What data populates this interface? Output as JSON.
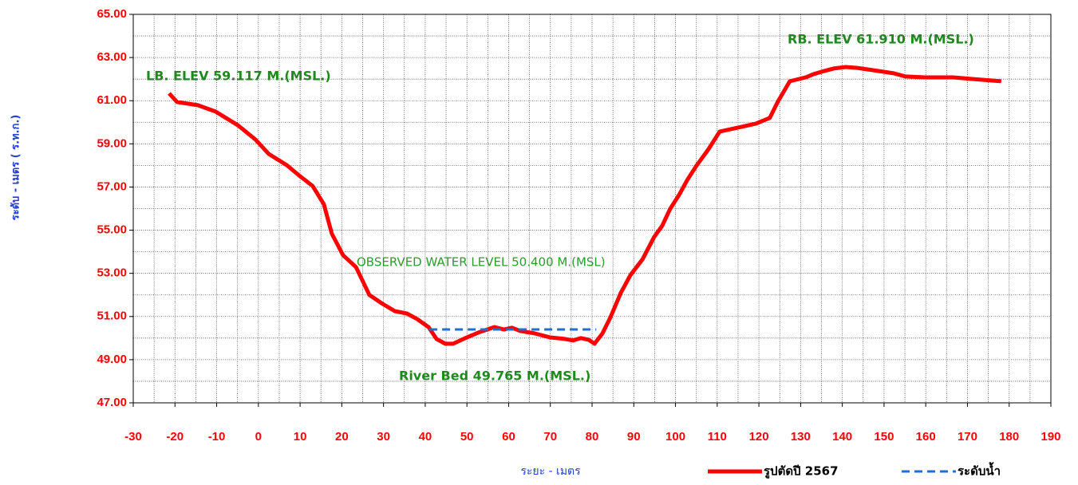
{
  "chart_data": {
    "type": "line",
    "xlabel": "ระยะ - เมตร",
    "ylabel": "ระดับ - เมตร ( ร.ท.ก.)",
    "annotations": [
      "LB. ELEV 59.117 M.(MSL.)",
      "RB. ELEV  61.910 M.(MSL.)",
      "OBSERVED WATER LEVEL 50.400  M.(MSL)",
      "River  Bed  49.765 M.(MSL.)"
    ],
    "series": [
      {
        "name": "รูปตัดปี 2567",
        "color": "#ff0000",
        "dash": false,
        "x": [
          -21.4,
          -19.5,
          -14.5,
          -10.3,
          -4.9,
          -0.7,
          2.5,
          6.9,
          9.8,
          13.0,
          15.7,
          17.6,
          20.3,
          23.4,
          26.6,
          29.5,
          32.7,
          35.6,
          38.1,
          40.8,
          42.7,
          44.8,
          46.7,
          49.6,
          52.8,
          56.6,
          58.9,
          60.8,
          62.8,
          66.2,
          70.0,
          73.5,
          75.4,
          77.3,
          79.2,
          80.6,
          82.5,
          84.4,
          86.9,
          89.2,
          92.1,
          94.9,
          96.8,
          98.7,
          101.0,
          102.9,
          105.0,
          107.9,
          110.6,
          114.9,
          119.3,
          122.6,
          124.5,
          127.4,
          131.2,
          133.1,
          135.0,
          137.9,
          140.8,
          143.6,
          148.5,
          152.3,
          155.2,
          159.9,
          166.6,
          171.4,
          178.1
        ],
        "values": [
          61.34,
          60.94,
          60.79,
          60.5,
          59.86,
          59.2,
          58.53,
          58.0,
          57.53,
          57.05,
          56.2,
          54.84,
          53.84,
          53.29,
          52.0,
          51.62,
          51.25,
          51.14,
          50.88,
          50.51,
          49.96,
          49.74,
          49.74,
          50.0,
          50.26,
          50.51,
          50.4,
          50.48,
          50.33,
          50.22,
          50.03,
          49.96,
          49.89,
          50.0,
          49.92,
          49.74,
          50.22,
          50.96,
          52.1,
          52.92,
          53.65,
          54.69,
          55.2,
          55.98,
          56.68,
          57.35,
          57.98,
          58.75,
          59.57,
          59.75,
          59.94,
          60.2,
          60.94,
          61.9,
          62.08,
          62.23,
          62.34,
          62.49,
          62.56,
          62.52,
          62.38,
          62.27,
          62.12,
          62.08,
          62.08,
          62.0,
          61.9
        ]
      },
      {
        "name": "ระดับน้ำ",
        "color": "#1f6fd0",
        "dash": true,
        "x": [
          41,
          81
        ],
        "values": [
          50.4,
          50.4
        ]
      }
    ],
    "xlim": [
      -30,
      190
    ],
    "xticks": [
      -30,
      -20,
      -10,
      0,
      10,
      20,
      30,
      40,
      50,
      60,
      70,
      80,
      90,
      100,
      110,
      120,
      130,
      140,
      150,
      160,
      170,
      180,
      190
    ],
    "ylim": [
      47,
      65
    ],
    "yticks": [
      {
        "value": 47,
        "label": "47.00"
      },
      {
        "value": 49,
        "label": "49.00"
      },
      {
        "value": 51,
        "label": "51.00"
      },
      {
        "value": 53,
        "label": "53.00"
      },
      {
        "value": 55,
        "label": "55.00"
      },
      {
        "value": 57,
        "label": "57.00"
      },
      {
        "value": 59,
        "label": "59.00"
      },
      {
        "value": 61,
        "label": "61.00"
      },
      {
        "value": 63,
        "label": "63.00"
      },
      {
        "value": 65,
        "label": "65.00"
      }
    ],
    "grid": true,
    "minor_grid": {
      "x": 5,
      "y": 1
    },
    "legend": "bottom-right"
  }
}
